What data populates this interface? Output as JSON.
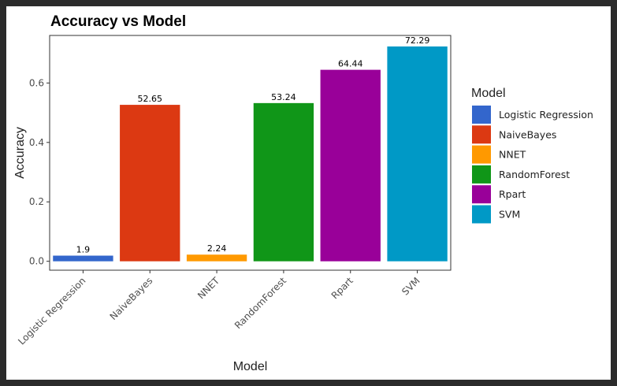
{
  "chart_data": {
    "type": "bar",
    "title": "Accuracy vs Model",
    "xlabel": "Model",
    "ylabel": "Accuracy",
    "categories": [
      "Logistic Regression",
      "NaiveBayes",
      "NNET",
      "RandomForest",
      "Rpart",
      "SVM"
    ],
    "values": [
      0.019,
      0.5265,
      0.0224,
      0.5324,
      0.6444,
      0.7229
    ],
    "data_labels": [
      "1.9",
      "52.65",
      "2.24",
      "53.24",
      "64.44",
      "72.29"
    ],
    "colors": [
      "#3366cc",
      "#dc3912",
      "#ff9900",
      "#109618",
      "#990099",
      "#0099c6"
    ],
    "ylim": [
      -0.03,
      0.76
    ],
    "yticks": [
      0.0,
      0.2,
      0.4,
      0.6
    ],
    "ytick_labels": [
      "0.0",
      "0.2",
      "0.4",
      "0.6"
    ],
    "grid": false,
    "legend": {
      "title": "Model",
      "position": "right",
      "entries": [
        "Logistic Regression",
        "NaiveBayes",
        "NNET",
        "RandomForest",
        "Rpart",
        "SVM"
      ]
    }
  }
}
